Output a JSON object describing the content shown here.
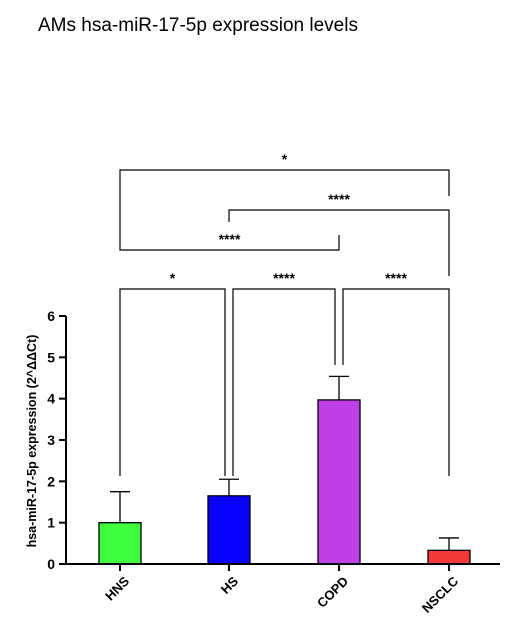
{
  "chart_data": {
    "type": "bar",
    "title": "AMs hsa-miR-17-5p expression levels",
    "ylabel": "hsa-miR-17-5p expression (2^ΔΔCt)",
    "xlabel": "",
    "ylim": [
      0,
      6
    ],
    "yticks": [
      "0",
      "1",
      "2",
      "3",
      "4",
      "5",
      "6"
    ],
    "categories": [
      "HNS",
      "HS",
      "COPD",
      "NSCLC"
    ],
    "values": [
      1.0,
      1.65,
      3.97,
      0.33
    ],
    "errors": [
      0.75,
      0.4,
      0.57,
      0.3
    ],
    "colors": [
      "#3dff3d",
      "#0a00ff",
      "#c040e8",
      "#f23a3a"
    ],
    "significance": [
      {
        "from": "HNS",
        "to": "HS",
        "label": "*"
      },
      {
        "from": "HS",
        "to": "COPD",
        "label": "****"
      },
      {
        "from": "COPD",
        "to": "NSCLC",
        "label": "****"
      },
      {
        "from": "HNS",
        "to": "COPD",
        "label": "****"
      },
      {
        "from": "HS",
        "to": "NSCLC",
        "label": "****"
      },
      {
        "from": "HNS",
        "to": "NSCLC",
        "label": "*"
      }
    ],
    "grid": false,
    "legend": "none"
  }
}
